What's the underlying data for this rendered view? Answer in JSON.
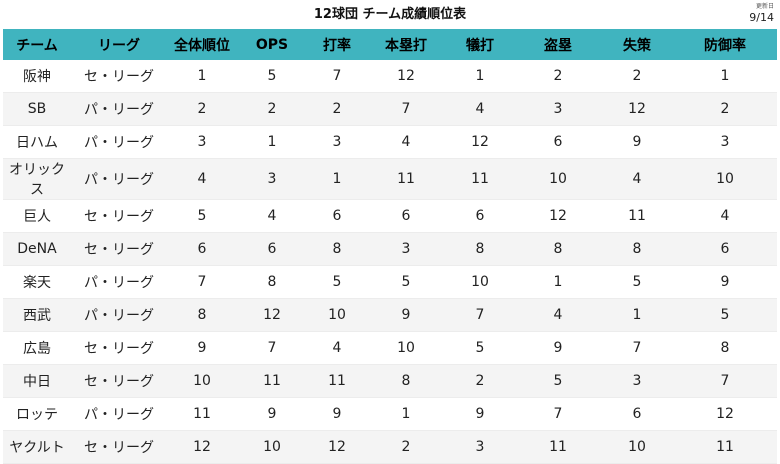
{
  "header": {
    "title": "12球団 チーム成績順位表",
    "updated_label": "更新日",
    "updated_date": "9/14"
  },
  "table": {
    "columns": [
      "チーム",
      "リーグ",
      "全体順位",
      "OPS",
      "打率",
      "本塁打",
      "犠打",
      "盗塁",
      "失策",
      "防御率"
    ],
    "rows": [
      [
        "阪神",
        "セ・リーグ",
        "1",
        "5",
        "7",
        "12",
        "1",
        "2",
        "2",
        "1"
      ],
      [
        "SB",
        "パ・リーグ",
        "2",
        "2",
        "2",
        "7",
        "4",
        "3",
        "12",
        "2"
      ],
      [
        "日ハム",
        "パ・リーグ",
        "3",
        "1",
        "3",
        "4",
        "12",
        "6",
        "9",
        "3"
      ],
      [
        "オリックス",
        "パ・リーグ",
        "4",
        "3",
        "1",
        "11",
        "11",
        "10",
        "4",
        "10"
      ],
      [
        "巨人",
        "セ・リーグ",
        "5",
        "4",
        "6",
        "6",
        "6",
        "12",
        "11",
        "4"
      ],
      [
        "DeNA",
        "セ・リーグ",
        "6",
        "6",
        "8",
        "3",
        "8",
        "8",
        "8",
        "6"
      ],
      [
        "楽天",
        "パ・リーグ",
        "7",
        "8",
        "5",
        "5",
        "10",
        "1",
        "5",
        "9"
      ],
      [
        "西武",
        "パ・リーグ",
        "8",
        "12",
        "10",
        "9",
        "7",
        "4",
        "1",
        "5"
      ],
      [
        "広島",
        "セ・リーグ",
        "9",
        "7",
        "4",
        "10",
        "5",
        "9",
        "7",
        "8"
      ],
      [
        "中日",
        "セ・リーグ",
        "10",
        "11",
        "11",
        "8",
        "2",
        "5",
        "3",
        "7"
      ],
      [
        "ロッテ",
        "パ・リーグ",
        "11",
        "9",
        "9",
        "1",
        "9",
        "7",
        "6",
        "12"
      ],
      [
        "ヤクルト",
        "セ・リーグ",
        "12",
        "10",
        "12",
        "2",
        "3",
        "11",
        "10",
        "11"
      ]
    ]
  },
  "colors": {
    "header_bg": "#40b4bf",
    "row_alt_bg": "#f4f4f4"
  }
}
